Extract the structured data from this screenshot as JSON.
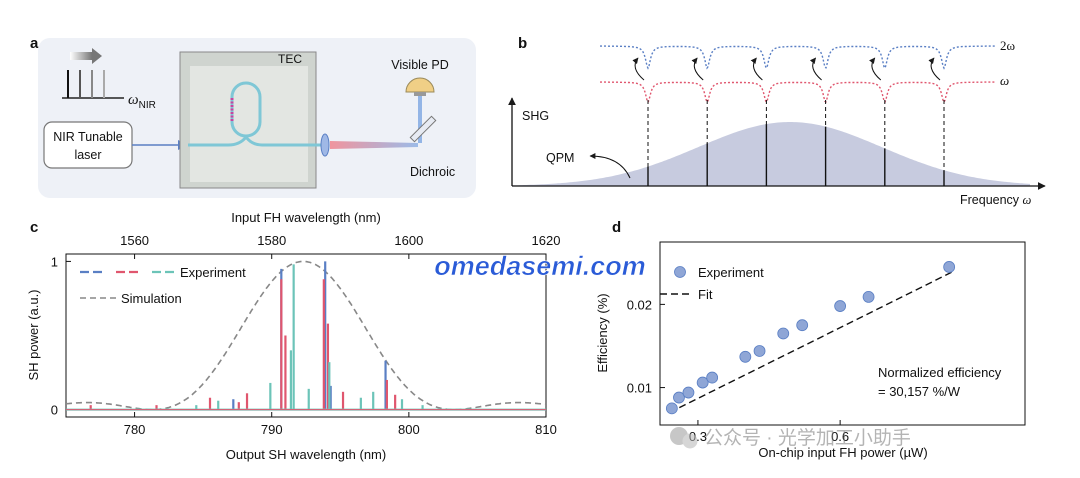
{
  "panels": {
    "a": {
      "letter": "a",
      "tec_label": "TEC",
      "pd_label": "Visible PD",
      "laser_label_line1": "NIR Tunable",
      "laser_label_line2": "laser",
      "dichroic_label": "Dichroic",
      "omega_symbol": "ω",
      "omega_subscript": "NIR"
    },
    "b": {
      "letter": "b",
      "ylabel": "SHG",
      "xlabel_text": "Frequency",
      "xlabel_symbol": "ω",
      "qpm_label": "QPM",
      "row_top_label": "2ω",
      "row_bottom_label": "ω",
      "resonance_count": 6
    },
    "c": {
      "letter": "c"
    },
    "d": {
      "letter": "d",
      "annotation_line1": "Normalized efficiency",
      "annotation_line2": "= 30,157 %/W"
    }
  },
  "watermark": {
    "site": "omedasemi.com",
    "wechat": "公众号 · 光学加工小助手"
  },
  "colors": {
    "blue": "#5a7fc4",
    "red": "#e0566e",
    "teal": "#6cc4b8",
    "gray": "#888888",
    "fill_shg": "#c7cbdf",
    "marker": "#8fa6d6"
  },
  "chart_data": [
    {
      "id": "panel-c",
      "type": "line",
      "title": "",
      "xlabel": "Output SH wavelength (nm)",
      "top_xlabel": "Input FH wavelength (nm)",
      "ylabel": "SH power (a.u.)",
      "xlim": [
        775,
        810
      ],
      "top_xlim": [
        1550,
        1620
      ],
      "ylim": [
        -0.05,
        1.05
      ],
      "xticks": [
        780,
        790,
        800,
        810
      ],
      "xtick_labels": [
        "780",
        "790",
        "800",
        "810"
      ],
      "top_xticks": [
        1560,
        1580,
        1600,
        1620
      ],
      "top_xtick_labels": [
        "1560",
        "1580",
        "1600",
        "1620"
      ],
      "yticks": [
        0,
        1
      ],
      "ytick_labels": [
        "0",
        "1"
      ],
      "legend": [
        "Experiment",
        "Simulation"
      ],
      "simulation": {
        "center": 792.3,
        "peak": 1.0,
        "half_width": 11.0
      },
      "series": [
        {
          "name": "Experiment (blue)",
          "color": "#5a7fc4",
          "peaks": [
            [
              790.7,
              0.95
            ],
            [
              793.9,
              1.0
            ],
            [
              798.3,
              0.33
            ],
            [
              787.2,
              0.07
            ],
            [
              794.3,
              0.16
            ]
          ]
        },
        {
          "name": "Experiment (red)",
          "color": "#e0566e",
          "peaks": [
            [
              790.7,
              0.88
            ],
            [
              791.0,
              0.5
            ],
            [
              793.8,
              0.88
            ],
            [
              794.1,
              0.58
            ],
            [
              798.4,
              0.2
            ],
            [
              788.2,
              0.11
            ],
            [
              785.5,
              0.08
            ],
            [
              799.0,
              0.1
            ],
            [
              776.8,
              0.03
            ],
            [
              781.6,
              0.03
            ],
            [
              787.6,
              0.05
            ],
            [
              795.2,
              0.12
            ]
          ]
        },
        {
          "name": "Experiment (teal)",
          "color": "#6cc4b8",
          "peaks": [
            [
              791.6,
              0.98
            ],
            [
              791.4,
              0.4
            ],
            [
              794.2,
              0.32
            ],
            [
              789.9,
              0.18
            ],
            [
              792.7,
              0.14
            ],
            [
              796.5,
              0.08
            ],
            [
              797.4,
              0.12
            ],
            [
              799.5,
              0.07
            ],
            [
              786.1,
              0.06
            ],
            [
              801.0,
              0.03
            ],
            [
              784.5,
              0.03
            ]
          ]
        }
      ]
    },
    {
      "id": "panel-d",
      "type": "scatter",
      "title": "",
      "xlabel": "On-chip input FH power (µW)",
      "ylabel": "Efficiency (%)",
      "xlim": [
        0.22,
        0.99
      ],
      "ylim": [
        0.0055,
        0.0275
      ],
      "xticks": [
        0.3,
        0.6
      ],
      "xtick_labels": [
        "0.3",
        "0.6"
      ],
      "yticks": [
        0.01,
        0.02
      ],
      "ytick_labels": [
        "0.01",
        "0.02"
      ],
      "legend": [
        "Experiment",
        "Fit"
      ],
      "points": [
        {
          "x": 0.245,
          "y": 0.0075
        },
        {
          "x": 0.26,
          "y": 0.0088
        },
        {
          "x": 0.28,
          "y": 0.0094
        },
        {
          "x": 0.31,
          "y": 0.0106
        },
        {
          "x": 0.33,
          "y": 0.0112
        },
        {
          "x": 0.4,
          "y": 0.0137
        },
        {
          "x": 0.43,
          "y": 0.0144
        },
        {
          "x": 0.48,
          "y": 0.0165
        },
        {
          "x": 0.52,
          "y": 0.0175
        },
        {
          "x": 0.6,
          "y": 0.0198
        },
        {
          "x": 0.66,
          "y": 0.0209
        },
        {
          "x": 0.83,
          "y": 0.0245
        }
      ],
      "fit": {
        "x": [
          0.24,
          0.84
        ],
        "y": [
          0.007,
          0.024
        ]
      }
    }
  ]
}
